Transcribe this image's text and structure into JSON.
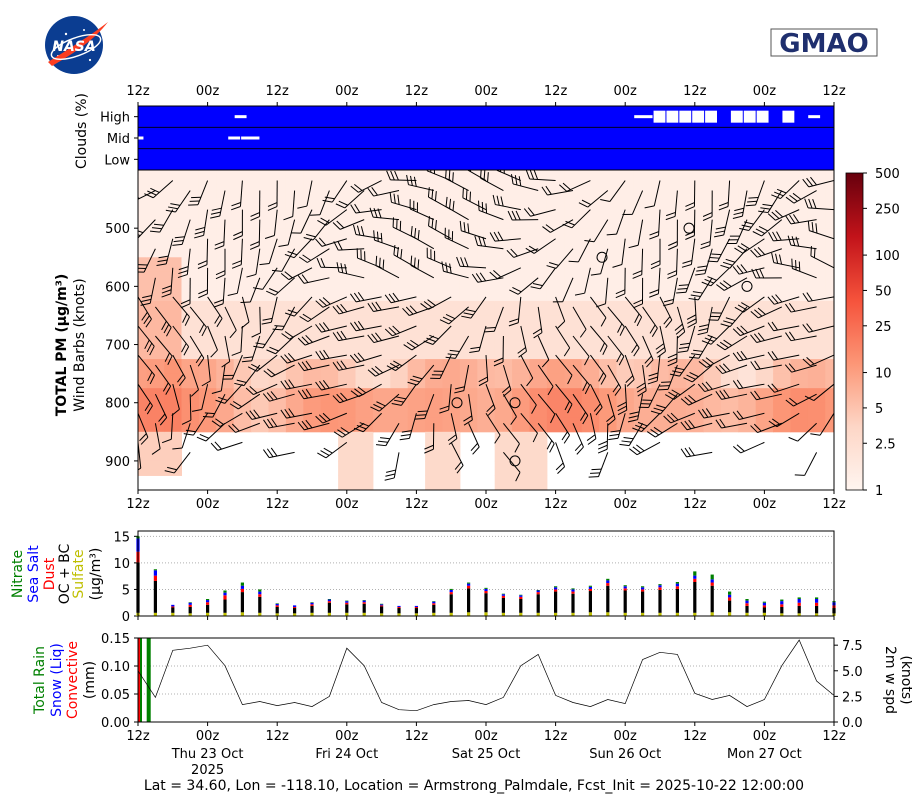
{
  "logos": {
    "left": "NASA",
    "right": "GMAO"
  },
  "colors": {
    "clouds": "#0000ff",
    "nitrate": "#008000",
    "sea_salt": "#0000ff",
    "dust": "#ff0000",
    "ocbc": "#000000",
    "sulfate": "#bfbf00",
    "total_rain": "#008000",
    "snow_liq": "#0000ff",
    "convective": "#ff0000"
  },
  "time_axis": {
    "ticks": [
      "12z",
      "00z",
      "12z",
      "00z",
      "12z",
      "00z",
      "12z",
      "00z",
      "12z",
      "00z",
      "12z"
    ],
    "days": [
      {
        "label": "Thu 23 Oct",
        "year": "2025"
      },
      {
        "label": "Fri 24 Oct",
        "year": ""
      },
      {
        "label": "Sat 25 Oct",
        "year": ""
      },
      {
        "label": "Sun 26 Oct",
        "year": ""
      },
      {
        "label": "Mon 27 Oct",
        "year": ""
      }
    ]
  },
  "clouds_panel": {
    "ylabel": "Clouds (%)",
    "levels": [
      "High",
      "Mid",
      "Low"
    ],
    "clear_gaps": {
      "High": [
        [
          7.5,
          8.5
        ],
        [
          38.5,
          40
        ],
        [
          40,
          41
        ],
        [
          41,
          42
        ],
        [
          42,
          43
        ],
        [
          43,
          44
        ],
        [
          44,
          45
        ],
        [
          46,
          47
        ],
        [
          47,
          48
        ],
        [
          48,
          49
        ],
        [
          50,
          51
        ],
        [
          52,
          53
        ]
      ],
      "Mid": [
        [
          0,
          0.5
        ],
        [
          7,
          8
        ],
        [
          8,
          9.5
        ]
      ],
      "Low": []
    }
  },
  "pm_panel": {
    "ylabel_bold": "TOTAL PM (µg/m³)",
    "ylabel": "Wind Barbs (knots)",
    "y_ticks": [
      "500",
      "600",
      "700",
      "800",
      "900"
    ],
    "ylim_hpa": [
      400,
      950
    ],
    "colorbar_ticks": [
      "1",
      "2.5",
      "5",
      "10",
      "25",
      "50",
      "100",
      "250",
      "500"
    ],
    "calm_circles": [
      [
        9.5,
        500
      ],
      [
        8.0,
        550
      ],
      [
        10.5,
        600
      ],
      [
        5.5,
        800
      ],
      [
        6.5,
        800
      ],
      [
        6.5,
        900
      ]
    ]
  },
  "chart_data": [
    {
      "type": "bar",
      "title": "",
      "ylabel": "(µg/m³)",
      "legend_labels": [
        "Nitrate",
        "Sea Salt",
        "Dust",
        "OC + BC",
        "Sulfate"
      ],
      "y_ticks": [
        "0",
        "5",
        "10",
        "15"
      ],
      "ylim": [
        0,
        16
      ],
      "x_hours_from_start": [
        0,
        3,
        6,
        9,
        12,
        15,
        18,
        21,
        24,
        27,
        30,
        33,
        36,
        39,
        42,
        45,
        48,
        51,
        54,
        57,
        60,
        63,
        66,
        69,
        72,
        75,
        78,
        81,
        84,
        87,
        90,
        93,
        96,
        99,
        102,
        105,
        108,
        111,
        114,
        117,
        120
      ],
      "series": [
        {
          "name": "Sulfate",
          "values": [
            0.6,
            0.6,
            0.6,
            0.5,
            0.6,
            0.6,
            0.7,
            0.6,
            0.5,
            0.5,
            0.6,
            0.6,
            0.6,
            0.6,
            0.5,
            0.5,
            0.5,
            0.6,
            0.6,
            0.7,
            0.7,
            0.6,
            0.6,
            0.6,
            0.6,
            0.6,
            0.7,
            0.7,
            0.6,
            0.6,
            0.6,
            0.6,
            0.6,
            0.7,
            0.7,
            0.6,
            0.6,
            0.5,
            0.5,
            0.5,
            0.5
          ]
        },
        {
          "name": "OC + BC",
          "values": [
            9.5,
            6.0,
            1.0,
            1.2,
            1.5,
            2.5,
            3.8,
            3.0,
            1.2,
            1.0,
            1.3,
            1.9,
            1.6,
            1.7,
            1.3,
            1.0,
            1.0,
            1.5,
            3.5,
            4.5,
            3.6,
            2.8,
            2.6,
            3.5,
            4.0,
            3.6,
            4.0,
            5.0,
            4.2,
            4.0,
            4.3,
            4.5,
            5.8,
            5.0,
            2.2,
            1.3,
            1.0,
            1.2,
            1.4,
            1.4,
            1.0
          ]
        },
        {
          "name": "Dust",
          "values": [
            2.0,
            1.0,
            0.2,
            0.4,
            0.5,
            0.8,
            0.6,
            0.5,
            0.3,
            0.2,
            0.3,
            0.3,
            0.3,
            0.3,
            0.2,
            0.2,
            0.2,
            0.3,
            0.4,
            0.5,
            0.4,
            0.4,
            0.4,
            0.4,
            0.4,
            0.4,
            0.4,
            0.5,
            0.4,
            0.4,
            0.5,
            0.5,
            0.6,
            0.6,
            0.6,
            0.5,
            0.4,
            0.5,
            0.6,
            0.6,
            0.5
          ]
        },
        {
          "name": "Sea Salt",
          "values": [
            2.5,
            1.0,
            0.3,
            0.4,
            0.4,
            0.5,
            0.6,
            0.5,
            0.3,
            0.3,
            0.3,
            0.3,
            0.3,
            0.3,
            0.2,
            0.2,
            0.2,
            0.3,
            0.4,
            0.4,
            0.4,
            0.3,
            0.3,
            0.3,
            0.4,
            0.4,
            0.4,
            0.5,
            0.4,
            0.4,
            0.4,
            0.5,
            0.6,
            0.6,
            0.5,
            0.5,
            0.5,
            0.6,
            0.7,
            0.7,
            0.6
          ]
        },
        {
          "name": "Nitrate",
          "values": [
            0.4,
            0.2,
            0.0,
            0.1,
            0.2,
            0.4,
            0.6,
            0.4,
            0.1,
            0.0,
            0.1,
            0.1,
            0.1,
            0.1,
            0.1,
            0.0,
            0.0,
            0.1,
            0.2,
            0.2,
            0.2,
            0.1,
            0.1,
            0.1,
            0.2,
            0.2,
            0.2,
            0.3,
            0.2,
            0.2,
            0.2,
            0.3,
            0.8,
            0.9,
            0.6,
            0.3,
            0.2,
            0.3,
            0.3,
            0.3,
            0.2
          ]
        }
      ]
    },
    {
      "type": "line",
      "title": "",
      "ylabel_left_parts": [
        "Total Rain",
        "Snow (Liq)",
        "Convective",
        "(mm)"
      ],
      "ylabel_right": "2m w spd\n(knots)",
      "y_ticks_left": [
        "0.00",
        "0.05",
        "0.10",
        "0.15"
      ],
      "y_ticks_right": [
        "0.0",
        "2.5",
        "5.0",
        "7.5"
      ],
      "ylim_left": [
        0,
        0.15
      ],
      "ylim_right": [
        0,
        8.2
      ],
      "precip_bars": [
        {
          "hour": 0,
          "total_rain": 0.15,
          "convective": 0.15
        },
        {
          "hour": 1.5,
          "total_rain": 0.15,
          "convective": 0.0
        }
      ],
      "series": [
        {
          "name": "2m w spd",
          "x": [
            0,
            3,
            6,
            9,
            12,
            15,
            18,
            21,
            24,
            27,
            30,
            33,
            36,
            39,
            42,
            45,
            48,
            51,
            54,
            57,
            60,
            63,
            66,
            69,
            72,
            75,
            78,
            81,
            84,
            87,
            90,
            93,
            96,
            99,
            102,
            105,
            108,
            111,
            114,
            117,
            120
          ],
          "values": [
            5.0,
            2.4,
            7.0,
            7.2,
            7.5,
            5.5,
            1.7,
            2.0,
            1.6,
            1.9,
            1.5,
            2.5,
            7.2,
            5.5,
            1.9,
            1.2,
            1.1,
            1.7,
            2.0,
            2.1,
            1.7,
            2.4,
            5.5,
            6.6,
            2.6,
            1.9,
            1.5,
            2.2,
            1.8,
            6.1,
            6.8,
            6.6,
            2.8,
            2.2,
            2.6,
            1.5,
            2.2,
            5.5,
            8.0,
            4.0,
            2.6
          ]
        }
      ]
    }
  ],
  "footer": "Lat = 34.60, Lon = -118.10, Location = Armstrong_Palmdale, Fcst_Init = 2025-10-22 12:00:00"
}
